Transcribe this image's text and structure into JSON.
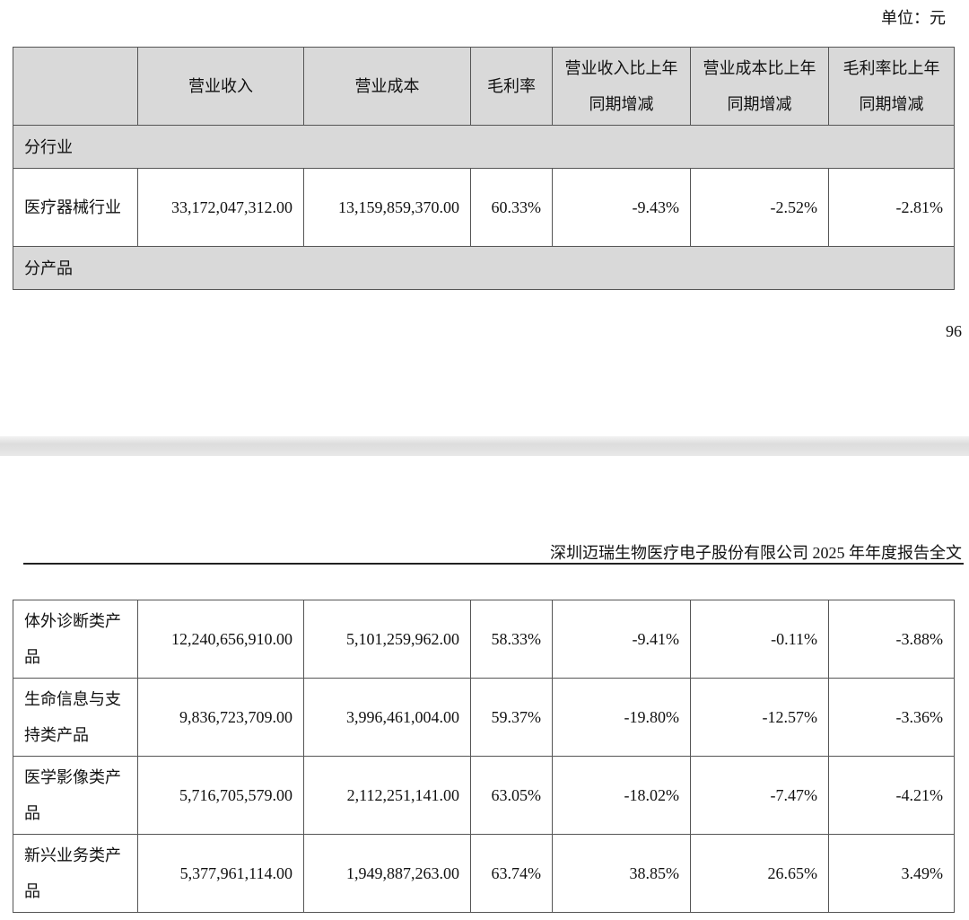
{
  "unit_label": "单位：元",
  "page_number": "96",
  "running_header": "深圳迈瑞生物医疗电子股份有限公司 2025 年年度报告全文",
  "table": {
    "headers": [
      "",
      "营业收入",
      "营业成本",
      "毛利率",
      "营业收入比上年同期增减",
      "营业成本比上年同期增减",
      "毛利率比上年同期增减"
    ],
    "section_industry": "分行业",
    "industry_rows": [
      {
        "name": "医疗器械行业",
        "revenue": "33,172,047,312.00",
        "cost": "13,159,859,370.00",
        "margin": "60.33%",
        "rev_change": "-9.43%",
        "cost_change": "-2.52%",
        "margin_change": "-2.81%"
      }
    ],
    "section_product": "分产品",
    "product_rows": [
      {
        "name": "体外诊断类产品",
        "revenue": "12,240,656,910.00",
        "cost": "5,101,259,962.00",
        "margin": "58.33%",
        "rev_change": "-9.41%",
        "cost_change": "-0.11%",
        "margin_change": "-3.88%"
      },
      {
        "name": "生命信息与支持类产品",
        "revenue": "9,836,723,709.00",
        "cost": "3,996,461,004.00",
        "margin": "59.37%",
        "rev_change": "-19.80%",
        "cost_change": "-12.57%",
        "margin_change": "-3.36%"
      },
      {
        "name": "医学影像类产品",
        "revenue": "5,716,705,579.00",
        "cost": "2,112,251,141.00",
        "margin": "63.05%",
        "rev_change": "-18.02%",
        "cost_change": "-7.47%",
        "margin_change": "-4.21%"
      },
      {
        "name": "新兴业务类产品",
        "revenue": "5,377,961,114.00",
        "cost": "1,949,887,263.00",
        "margin": "63.74%",
        "rev_change": "38.85%",
        "cost_change": "26.65%",
        "margin_change": "3.49%"
      }
    ]
  }
}
